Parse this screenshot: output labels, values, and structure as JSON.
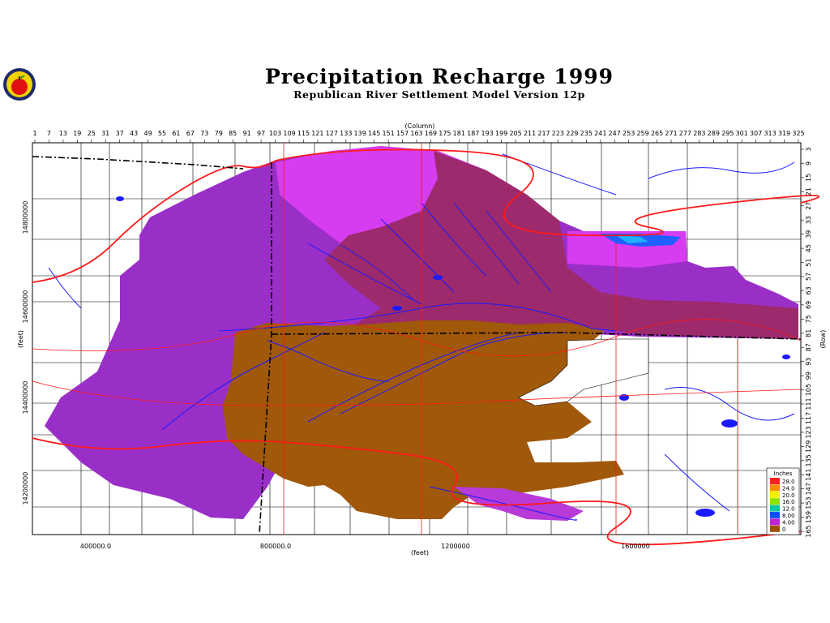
{
  "header": {
    "title": "Precipitation Recharge 1999",
    "subtitle": "Republican River Settlement Model Version 12p"
  },
  "axes": {
    "top_label": "(Column)",
    "right_label": "(Row)",
    "left_label": "(feet)",
    "bottom_label": "(feet)",
    "columns": [
      "1",
      "7",
      "13",
      "19",
      "25",
      "31",
      "37",
      "43",
      "49",
      "55",
      "61",
      "67",
      "73",
      "79",
      "85",
      "91",
      "97",
      "103",
      "109",
      "115",
      "121",
      "127",
      "133",
      "139",
      "145",
      "151",
      "157",
      "163",
      "169",
      "175",
      "181",
      "187",
      "193",
      "199",
      "205",
      "211",
      "217",
      "223",
      "229",
      "235",
      "241",
      "247",
      "253",
      "259",
      "265",
      "271",
      "277",
      "283",
      "289",
      "295",
      "301",
      "307",
      "313",
      "319",
      "325"
    ],
    "rows": [
      "3",
      "9",
      "15",
      "21",
      "27",
      "33",
      "39",
      "45",
      "51",
      "57",
      "63",
      "69",
      "75",
      "81",
      "87",
      "93",
      "99",
      "105",
      "111",
      "117",
      "123",
      "129",
      "135",
      "141",
      "147",
      "153",
      "159",
      "165"
    ],
    "x_ticks": [
      "400000.0",
      "800000.0",
      "1200000",
      "1600000"
    ],
    "y_ticks": [
      "14800000",
      "14600000",
      "14400000",
      "14200000"
    ]
  },
  "legend": {
    "title": "Inches",
    "items": [
      {
        "label": "28.0",
        "color": "#ff2020"
      },
      {
        "label": "24.0",
        "color": "#ff8c00"
      },
      {
        "label": "20.0",
        "color": "#f0f000"
      },
      {
        "label": "16.0",
        "color": "#90e000"
      },
      {
        "label": "12.0",
        "color": "#00c8a0"
      },
      {
        "label": "8.00",
        "color": "#0050ff"
      },
      {
        "label": "4.00",
        "color": "#c020d8"
      },
      {
        "label": "0",
        "color": "#a05000"
      }
    ]
  },
  "colors": {
    "purple": "#9a2fc8",
    "magenta": "#d63cf0",
    "maroon": "#9c2a6c",
    "brown": "#a0580a",
    "river": "#1a1aff",
    "road": "#ff1a1a",
    "boundary": "#000000"
  }
}
